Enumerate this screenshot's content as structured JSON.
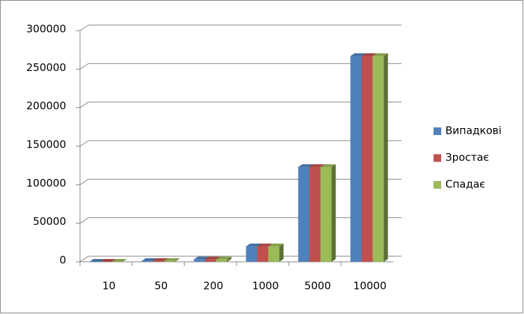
{
  "chart_data": {
    "type": "bar3d",
    "categories": [
      "10",
      "50",
      "200",
      "1000",
      "5000",
      "10000"
    ],
    "series": [
      {
        "name": "Випадкові",
        "color": "#4f81bd",
        "values": [
          50,
          1000,
          3000,
          20000,
          123000,
          267000
        ]
      },
      {
        "name": "Зростає",
        "color": "#c0504d",
        "values": [
          50,
          1000,
          3000,
          20000,
          123000,
          267000
        ]
      },
      {
        "name": "Спадає",
        "color": "#9bbb59",
        "values": [
          50,
          1000,
          3000,
          20000,
          123000,
          267000
        ]
      }
    ],
    "ylim": [
      0,
      300000
    ],
    "yticks": [
      0,
      50000,
      100000,
      150000,
      200000,
      250000,
      300000
    ],
    "grid": true,
    "legend": "right"
  }
}
